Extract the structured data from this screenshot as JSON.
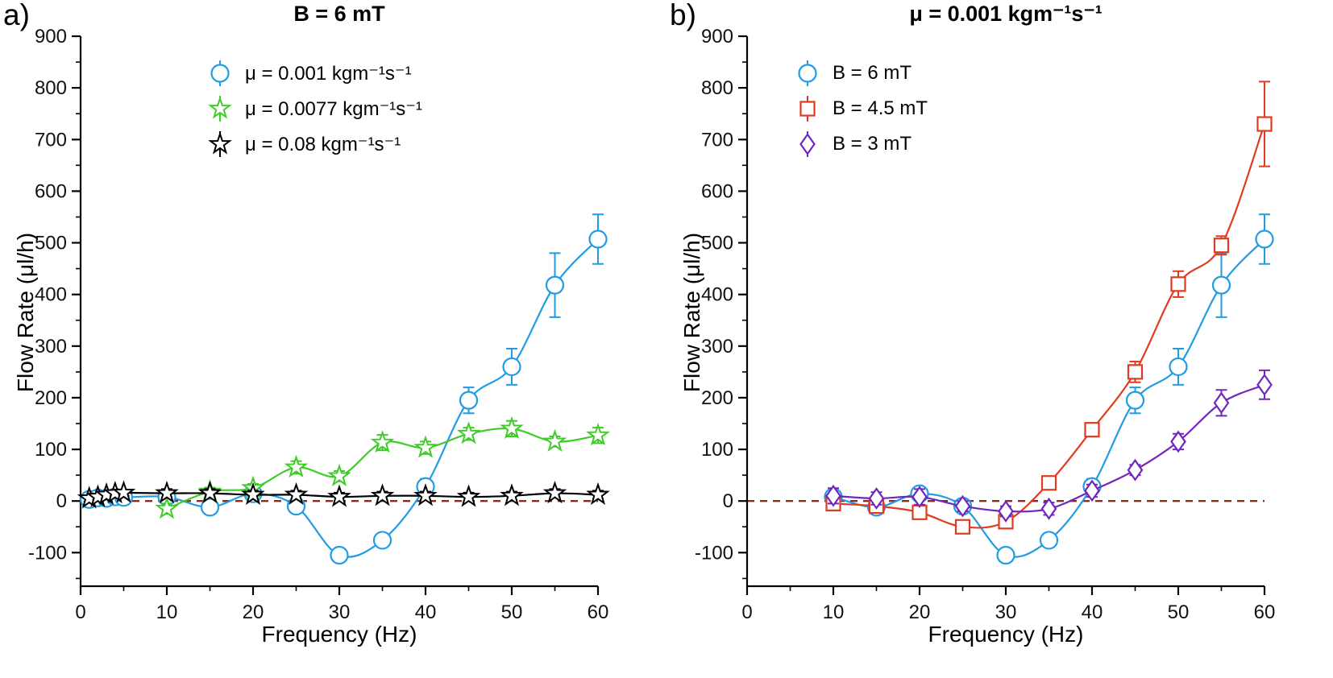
{
  "chart_data": [
    {
      "type": "line",
      "corner_label": "a)",
      "title": "B = 6 mT",
      "xlabel": "Frequency (Hz)",
      "ylabel": "Flow Rate (μl/h)",
      "xlim": [
        0,
        60
      ],
      "ylim": [
        -165,
        900
      ],
      "xticks": [
        0,
        10,
        20,
        30,
        40,
        50,
        60
      ],
      "yticks": [
        -100,
        0,
        100,
        200,
        300,
        400,
        500,
        600,
        700,
        800,
        900
      ],
      "grid": false,
      "legend_position": "top-left-inside",
      "zero_line": {
        "y": 0,
        "style": "dashed",
        "color": "#8B2A21"
      },
      "series": [
        {
          "name": "μ = 0.001 kgm⁻¹s⁻¹",
          "marker": "circle",
          "color": "#219CE3",
          "x": [
            1,
            2,
            3,
            4,
            5,
            10,
            15,
            20,
            25,
            30,
            35,
            40,
            45,
            50,
            55,
            60
          ],
          "y": [
            3,
            6,
            5,
            8,
            7,
            8,
            -12,
            14,
            -10,
            -105,
            -76,
            28,
            195,
            260,
            418,
            507
          ],
          "yerr": [
            6,
            6,
            6,
            6,
            6,
            12,
            8,
            10,
            8,
            12,
            9,
            15,
            25,
            35,
            62,
            48
          ]
        },
        {
          "name": "μ = 0.0077 kgm⁻¹s⁻¹",
          "marker": "star",
          "color": "#3FCB28",
          "x": [
            10,
            15,
            20,
            25,
            30,
            35,
            40,
            45,
            50,
            55,
            60
          ],
          "y": [
            -15,
            18,
            25,
            65,
            48,
            113,
            103,
            130,
            140,
            115,
            127
          ],
          "yerr": [
            10,
            8,
            8,
            12,
            10,
            15,
            12,
            12,
            15,
            10,
            15
          ]
        },
        {
          "name": "μ = 0.08 kgm⁻¹s⁻¹",
          "marker": "star",
          "color": "#000000",
          "x": [
            1,
            2,
            3,
            4,
            5,
            10,
            15,
            20,
            25,
            30,
            35,
            40,
            45,
            50,
            55,
            60
          ],
          "y": [
            5,
            8,
            12,
            15,
            16,
            15,
            15,
            12,
            12,
            8,
            10,
            10,
            8,
            10,
            15,
            12
          ],
          "yerr": [
            6,
            6,
            6,
            6,
            6,
            8,
            8,
            8,
            8,
            8,
            8,
            8,
            8,
            8,
            8,
            8
          ]
        }
      ]
    },
    {
      "type": "line",
      "corner_label": "b)",
      "title": "μ = 0.001 kgm⁻¹s⁻¹",
      "xlabel": "Frequency (Hz)",
      "ylabel": "Flow Rate (μl/h)",
      "xlim": [
        0,
        60
      ],
      "ylim": [
        -165,
        900
      ],
      "xticks": [
        0,
        10,
        20,
        30,
        40,
        50,
        60
      ],
      "yticks": [
        -100,
        0,
        100,
        200,
        300,
        400,
        500,
        600,
        700,
        800,
        900
      ],
      "grid": false,
      "legend_position": "top-left-inside",
      "zero_line": {
        "y": 0,
        "style": "dashed",
        "color": "#8B2A21"
      },
      "series": [
        {
          "name": "B = 6 mT",
          "marker": "circle",
          "color": "#219CE3",
          "x": [
            10,
            15,
            20,
            25,
            30,
            35,
            40,
            45,
            50,
            55,
            60
          ],
          "y": [
            8,
            -12,
            14,
            -10,
            -105,
            -76,
            28,
            195,
            260,
            418,
            507
          ],
          "yerr": [
            12,
            8,
            10,
            8,
            12,
            9,
            15,
            25,
            35,
            62,
            48
          ]
        },
        {
          "name": "B = 4.5 mT",
          "marker": "square",
          "color": "#E03A21",
          "x": [
            10,
            15,
            20,
            25,
            30,
            35,
            40,
            45,
            50,
            55,
            60
          ],
          "y": [
            -5,
            -10,
            -22,
            -50,
            -40,
            35,
            138,
            250,
            420,
            495,
            730
          ],
          "yerr": [
            10,
            10,
            8,
            10,
            8,
            10,
            12,
            20,
            25,
            18,
            82
          ]
        },
        {
          "name": "B = 3 mT",
          "marker": "diamond",
          "color": "#7126BE",
          "x": [
            10,
            15,
            20,
            25,
            30,
            35,
            40,
            45,
            50,
            55,
            60
          ],
          "y": [
            10,
            5,
            8,
            -10,
            -20,
            -15,
            20,
            60,
            115,
            190,
            225
          ],
          "yerr": [
            15,
            12,
            15,
            10,
            10,
            12,
            12,
            10,
            15,
            25,
            28
          ]
        }
      ]
    }
  ]
}
